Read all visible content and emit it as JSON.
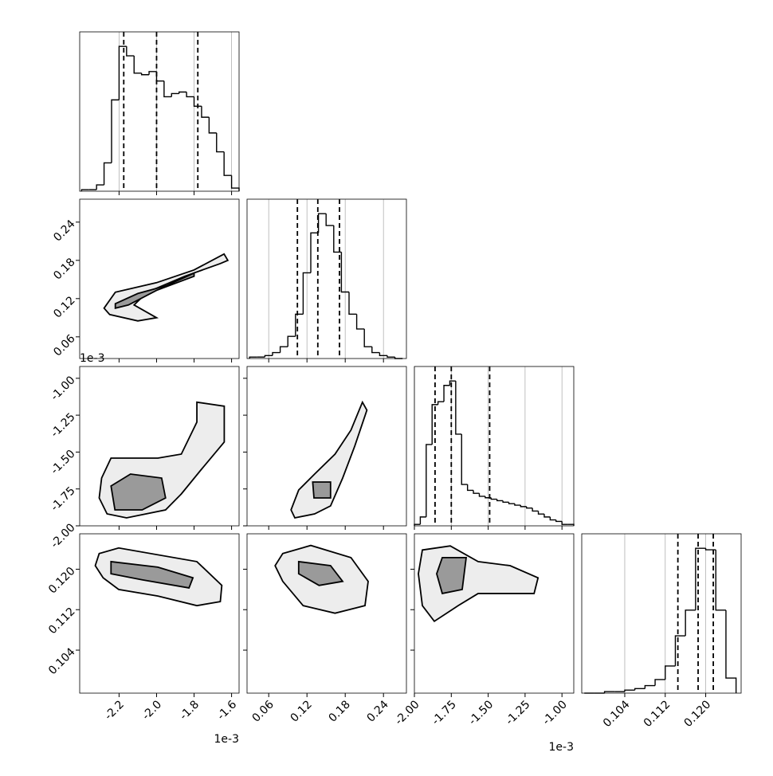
{
  "chart_data": {
    "type": "corner",
    "line_color": "#000000",
    "grid_color": "#b0b0b0",
    "contour_fills": [
      "#ededed",
      "#9a9a9a"
    ],
    "variables": [
      {
        "xlim": [
          -2.41,
          -1.56
        ],
        "ticks": [
          -2.2,
          {
            "value": -2.0,
            "label": "-2.0"
          },
          -1.8,
          -1.6
        ],
        "offset_text": "1e-3",
        "bins": [
          -2.4,
          -2.36,
          -2.32,
          -2.28,
          -2.24,
          -2.2,
          -2.16,
          -2.12,
          -2.08,
          -2.04,
          -2.0,
          -1.96,
          -1.92,
          -1.88,
          -1.84,
          -1.8,
          -1.76,
          -1.72,
          -1.68,
          -1.64,
          -1.6,
          -1.56
        ],
        "counts": [
          1,
          1,
          4,
          18,
          58,
          92,
          86,
          75,
          74,
          76,
          70,
          60,
          62,
          63,
          60,
          54,
          47,
          37,
          25,
          10,
          2
        ],
        "quantiles": [
          -2.175,
          -2.0,
          -1.78
        ]
      },
      {
        "xlim": [
          0.026,
          0.276
        ],
        "ticks": [
          0.06,
          0.12,
          0.18,
          0.24
        ],
        "bins": [
          0.03,
          0.042,
          0.054,
          0.066,
          0.078,
          0.09,
          0.102,
          0.114,
          0.126,
          0.138,
          0.15,
          0.162,
          0.174,
          0.186,
          0.198,
          0.21,
          0.222,
          0.234,
          0.246,
          0.258,
          0.27
        ],
        "counts": [
          1,
          1,
          2,
          4,
          8,
          15,
          30,
          58,
          85,
          98,
          90,
          72,
          45,
          30,
          20,
          8,
          4,
          2,
          1,
          0
        ],
        "quantiles": [
          0.105,
          0.137,
          0.171
        ]
      },
      {
        "xlim": [
          -2.0,
          -0.92
        ],
        "ticks": [
          {
            "value": -2.0,
            "label": "-2.00"
          },
          -1.75,
          {
            "value": -1.5,
            "label": "-1.50"
          },
          -1.25,
          {
            "value": -1.0,
            "label": "-1.00"
          }
        ],
        "offset_text": "1e-3",
        "bins": [
          -2.0,
          -1.96,
          -1.92,
          -1.88,
          -1.84,
          -1.8,
          -1.76,
          -1.72,
          -1.68,
          -1.64,
          -1.6,
          -1.56,
          -1.52,
          -1.48,
          -1.44,
          -1.4,
          -1.36,
          -1.32,
          -1.28,
          -1.24,
          -1.2,
          -1.16,
          -1.12,
          -1.08,
          -1.04,
          -1.0,
          -0.96,
          -0.92
        ],
        "counts": [
          1,
          6,
          55,
          82,
          84,
          95,
          98,
          62,
          28,
          24,
          22,
          20,
          19,
          18,
          17,
          16,
          15,
          14,
          13,
          12,
          10,
          8,
          6,
          4,
          3,
          1,
          1
        ],
        "quantiles": [
          -1.86,
          -1.75,
          -1.49
        ]
      },
      {
        "xlim": [
          0.0955,
          0.127
        ],
        "ticks": [
          0.104,
          0.112,
          {
            "value": 0.12,
            "label": "0.120"
          }
        ],
        "bins": [
          0.096,
          0.098,
          0.1,
          0.102,
          0.104,
          0.106,
          0.108,
          0.11,
          0.112,
          0.114,
          0.116,
          0.118,
          0.12,
          0.122,
          0.124,
          0.126
        ],
        "counts": [
          0,
          0,
          1,
          1,
          2,
          3,
          5,
          9,
          18,
          38,
          55,
          96,
          95,
          55,
          10
        ],
        "quantiles": [
          0.1145,
          0.1185,
          0.1215
        ]
      }
    ],
    "pairs": [
      [
        {
          "contours": [
            {
              "x": [
                -2.28,
                -2.22,
                -2.0,
                -1.8,
                -1.64,
                -1.62,
                -1.66,
                -1.85,
                -2.05,
                -2.12,
                -2.0,
                -2.1,
                -2.25
              ],
              "y": [
                0.105,
                0.13,
                0.145,
                0.165,
                0.19,
                0.18,
                0.175,
                0.155,
                0.13,
                0.11,
                0.09,
                0.085,
                0.095
              ]
            },
            {
              "x": [
                -2.22,
                -2.1,
                -1.95,
                -1.8,
                -1.8,
                -2.0,
                -2.15,
                -2.22
              ],
              "y": [
                0.112,
                0.128,
                0.14,
                0.16,
                0.155,
                0.133,
                0.11,
                0.105
              ]
            }
          ]
        }
      ],
      [
        {
          "contours": [
            {
              "x": [
                -2.293,
                -2.243,
                -1.993,
                -1.868,
                -1.785,
                -1.785,
                -1.639,
                -1.639,
                -1.764,
                -1.868,
                -1.952,
                -2.16,
                -2.264,
                -2.306
              ],
              "y": [
                -1.676,
                -1.541,
                -1.541,
                -1.514,
                -1.297,
                -1.162,
                -1.189,
                -1.432,
                -1.622,
                -1.784,
                -1.892,
                -1.946,
                -1.919,
                -1.811
              ]
            },
            {
              "x": [
                -2.243,
                -2.139,
                -1.973,
                -1.952,
                -2.077,
                -2.222
              ],
              "y": [
                -1.73,
                -1.649,
                -1.676,
                -1.811,
                -1.892,
                -1.892
              ]
            }
          ]
        },
        {
          "contours": [
            {
              "x": [
                0.095,
                0.107,
                0.132,
                0.164,
                0.189,
                0.207,
                0.214,
                0.195,
                0.176,
                0.157,
                0.132,
                0.101
              ],
              "y": [
                -1.892,
                -1.757,
                -1.649,
                -1.514,
                -1.351,
                -1.162,
                -1.216,
                -1.459,
                -1.676,
                -1.865,
                -1.919,
                -1.946
              ]
            },
            {
              "x": [
                0.129,
                0.157,
                0.157,
                0.131
              ],
              "y": [
                -1.703,
                -1.703,
                -1.811,
                -1.811
              ]
            }
          ]
        }
      ],
      [
        {
          "contours": [
            {
              "x": [
                -2.306,
                -2.202,
                -1.785,
                -1.652,
                -1.66,
                -1.785,
                -1.993,
                -2.202,
                -2.285,
                -2.327
              ],
              "y": [
                0.1231,
                0.1242,
                0.1215,
                0.1168,
                0.1136,
                0.1128,
                0.1147,
                0.116,
                0.1183,
                0.1207
              ]
            },
            {
              "x": [
                -2.243,
                -1.993,
                -1.806,
                -1.827,
                -2.077,
                -2.243
              ],
              "y": [
                0.1215,
                0.1204,
                0.1183,
                0.1163,
                0.1179,
                0.1191
              ]
            }
          ]
        },
        {
          "contours": [
            {
              "x": [
                0.082,
                0.126,
                0.189,
                0.216,
                0.211,
                0.164,
                0.114,
                0.082,
                0.07
              ],
              "y": [
                0.1231,
                0.1247,
                0.1223,
                0.1176,
                0.1128,
                0.1113,
                0.1128,
                0.1176,
                0.1207
              ]
            },
            {
              "x": [
                0.107,
                0.157,
                0.176,
                0.139,
                0.107
              ],
              "y": [
                0.1215,
                0.1207,
                0.1176,
                0.1168,
                0.1191
              ]
            }
          ]
        },
        {
          "contours": [
            {
              "x": [
                -1.946,
                -1.757,
                -1.568,
                -1.351,
                -1.162,
                -1.189,
                -1.568,
                -1.703,
                -1.865,
                -1.946,
                -1.973
              ],
              "y": [
                0.1238,
                0.1246,
                0.1215,
                0.1207,
                0.1183,
                0.1152,
                0.1152,
                0.1128,
                0.1097,
                0.1128,
                0.1191
              ]
            },
            {
              "x": [
                -1.811,
                -1.649,
                -1.676,
                -1.811,
                -1.849
              ],
              "y": [
                0.1223,
                0.1223,
                0.116,
                0.1152,
                0.1191
              ]
            }
          ]
        }
      ]
    ]
  }
}
